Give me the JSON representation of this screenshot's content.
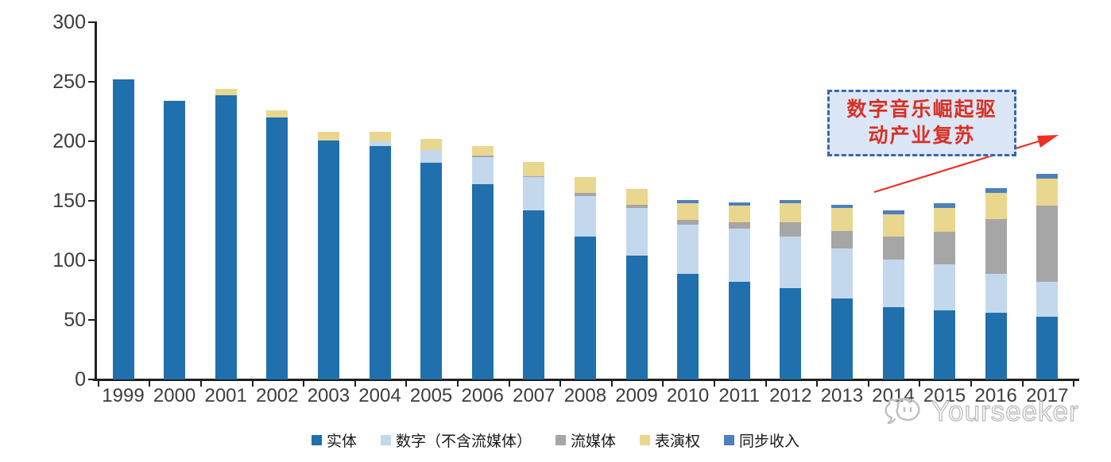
{
  "chart_data": {
    "type": "bar",
    "stacked": true,
    "title": "",
    "xlabel": "",
    "ylabel": "",
    "categories": [
      "1999",
      "2000",
      "2001",
      "2002",
      "2003",
      "2004",
      "2005",
      "2006",
      "2007",
      "2008",
      "2009",
      "2010",
      "2011",
      "2012",
      "2013",
      "2014",
      "2015",
      "2016",
      "2017"
    ],
    "series": [
      {
        "name": "实体",
        "color": "#2070ae",
        "values": [
          252,
          234,
          239,
          220,
          201,
          196,
          182,
          164,
          142,
          120,
          104,
          89,
          82,
          77,
          68,
          61,
          58,
          56,
          53
        ]
      },
      {
        "name": "数字（不含流媒体）",
        "color": "#c3d8ec",
        "values": [
          0,
          0,
          0,
          0,
          0,
          4,
          11,
          23,
          28,
          34,
          40,
          41,
          45,
          43,
          42,
          40,
          39,
          33,
          29
        ]
      },
      {
        "name": "流媒体",
        "color": "#a6a6a6",
        "values": [
          0,
          0,
          0,
          0,
          0,
          0,
          0,
          1,
          1,
          3,
          3,
          4,
          5,
          12,
          15,
          19,
          27,
          46,
          64
        ]
      },
      {
        "name": "表演权",
        "color": "#e9d78f",
        "values": [
          0,
          0,
          5,
          6,
          7,
          8,
          9,
          8,
          12,
          13,
          13,
          14,
          14,
          16,
          19,
          19,
          20,
          22,
          23
        ]
      },
      {
        "name": "同步收入",
        "color": "#4d80bc",
        "values": [
          0,
          0,
          0,
          0,
          0,
          0,
          0,
          0,
          0,
          0,
          0,
          3,
          3,
          3,
          3,
          3,
          4,
          4,
          4
        ]
      }
    ],
    "ylim": [
      0,
      300
    ],
    "yticks": [
      0,
      50,
      100,
      150,
      200,
      250,
      300
    ],
    "grid": false,
    "legend_position": "bottom",
    "annotation": {
      "full_text": "数字音乐崛起驱动产业复苏",
      "lines": [
        "数字音乐崛起驱",
        "动产业复苏"
      ]
    }
  },
  "watermark": {
    "text": "Yourseeker"
  },
  "colors": {
    "axis": "#1f1f1f",
    "label": "#3d3d3d",
    "annotation_border": "#3a66ad",
    "annotation_fill": "#dbe7f6",
    "annotation_text": "#d93025",
    "arrow": "#ee3124",
    "watermark": "#bfbfbf"
  }
}
